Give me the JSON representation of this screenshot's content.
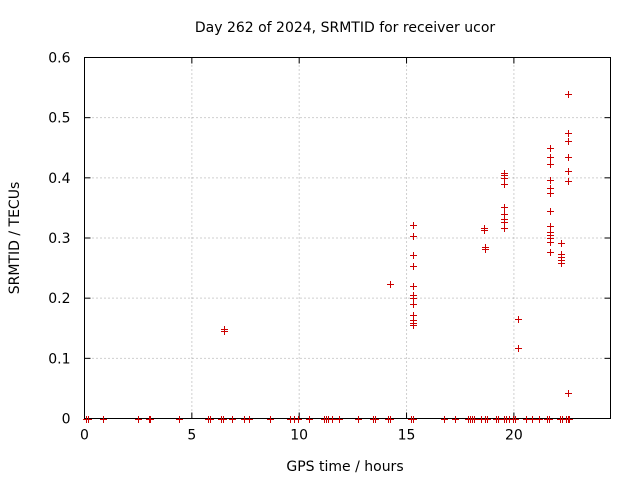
{
  "chart_data": {
    "type": "scatter",
    "title": "Day 262 of 2024, SRMTID for receiver ucor",
    "xlabel": "GPS time / hours",
    "ylabel": "SRMTID / TECUs",
    "xlim": [
      0,
      24.5
    ],
    "ylim": [
      0,
      0.6
    ],
    "xticks": [
      0,
      5,
      10,
      15,
      20
    ],
    "xtick_labels": [
      "0",
      "5",
      "10",
      "15",
      "20"
    ],
    "yticks": [
      0,
      0.1,
      0.2,
      0.3,
      0.4,
      0.5,
      0.6
    ],
    "ytick_labels": [
      "0",
      "0.1",
      "0.2",
      "0.3",
      "0.4",
      "0.5",
      "0.6"
    ],
    "grid": true,
    "marker": "+",
    "color": "#cc0000",
    "series": [
      {
        "name": "SRMTID",
        "x": [
          0.05,
          0.15,
          0.85,
          2.5,
          3.0,
          3.05,
          4.4,
          5.75,
          5.85,
          6.35,
          6.45,
          6.85,
          7.45,
          7.65,
          8.65,
          9.55,
          9.75,
          9.95,
          10.45,
          11.15,
          11.25,
          11.35,
          11.55,
          11.85,
          12.75,
          13.45,
          13.55,
          14.15,
          14.25,
          15.2,
          15.3,
          16.75,
          17.25,
          17.85,
          17.95,
          18.05,
          18.15,
          18.45,
          18.65,
          18.75,
          19.15,
          19.25,
          19.55,
          19.65,
          19.75,
          19.95,
          20.05,
          20.55,
          20.85,
          21.15,
          21.55,
          21.65,
          22.15,
          22.25,
          22.45,
          22.55,
          6.5,
          6.5,
          14.25,
          15.3,
          15.3,
          15.3,
          15.3,
          15.3,
          15.3,
          15.3,
          15.3,
          15.3,
          15.3,
          15.3,
          15.3,
          18.6,
          18.6,
          18.65,
          18.65,
          19.55,
          19.55,
          19.55,
          19.55,
          19.55,
          19.55,
          19.55,
          19.55,
          19.55,
          20.2,
          20.2,
          21.7,
          21.7,
          21.7,
          21.7,
          21.7,
          21.7,
          21.7,
          21.7,
          21.7,
          21.7,
          21.7,
          21.7,
          21.7,
          22.2,
          22.2,
          22.2,
          22.2,
          22.2,
          22.5,
          22.5,
          22.5,
          22.5,
          22.5,
          22.5,
          22.5,
          22.5
        ],
        "y": [
          0,
          0,
          0,
          0,
          0,
          0,
          0,
          0,
          0,
          0,
          0,
          0,
          0,
          0,
          0,
          0,
          0,
          0,
          0,
          0,
          0,
          0,
          0,
          0,
          0,
          0,
          0,
          0,
          0,
          0,
          0,
          0,
          0,
          0,
          0,
          0,
          0,
          0,
          0,
          0,
          0,
          0,
          0,
          0,
          0,
          0,
          0,
          0,
          0,
          0,
          0,
          0,
          0,
          0,
          0,
          0,
          0.149,
          0.145,
          0.224,
          0.322,
          0.304,
          0.272,
          0.253,
          0.221,
          0.205,
          0.2,
          0.19,
          0.172,
          0.163,
          0.158,
          0.155,
          0.317,
          0.314,
          0.285,
          0.282,
          0.408,
          0.404,
          0.399,
          0.39,
          0.352,
          0.34,
          0.332,
          0.327,
          0.317,
          0.166,
          0.117,
          0.449,
          0.435,
          0.423,
          0.396,
          0.383,
          0.374,
          0.345,
          0.32,
          0.31,
          0.305,
          0.3,
          0.293,
          0.277,
          0.292,
          0.273,
          0.268,
          0.263,
          0.258,
          0.54,
          0.475,
          0.462,
          0.434,
          0.412,
          0.395,
          0.043,
          0.0
        ]
      }
    ]
  }
}
